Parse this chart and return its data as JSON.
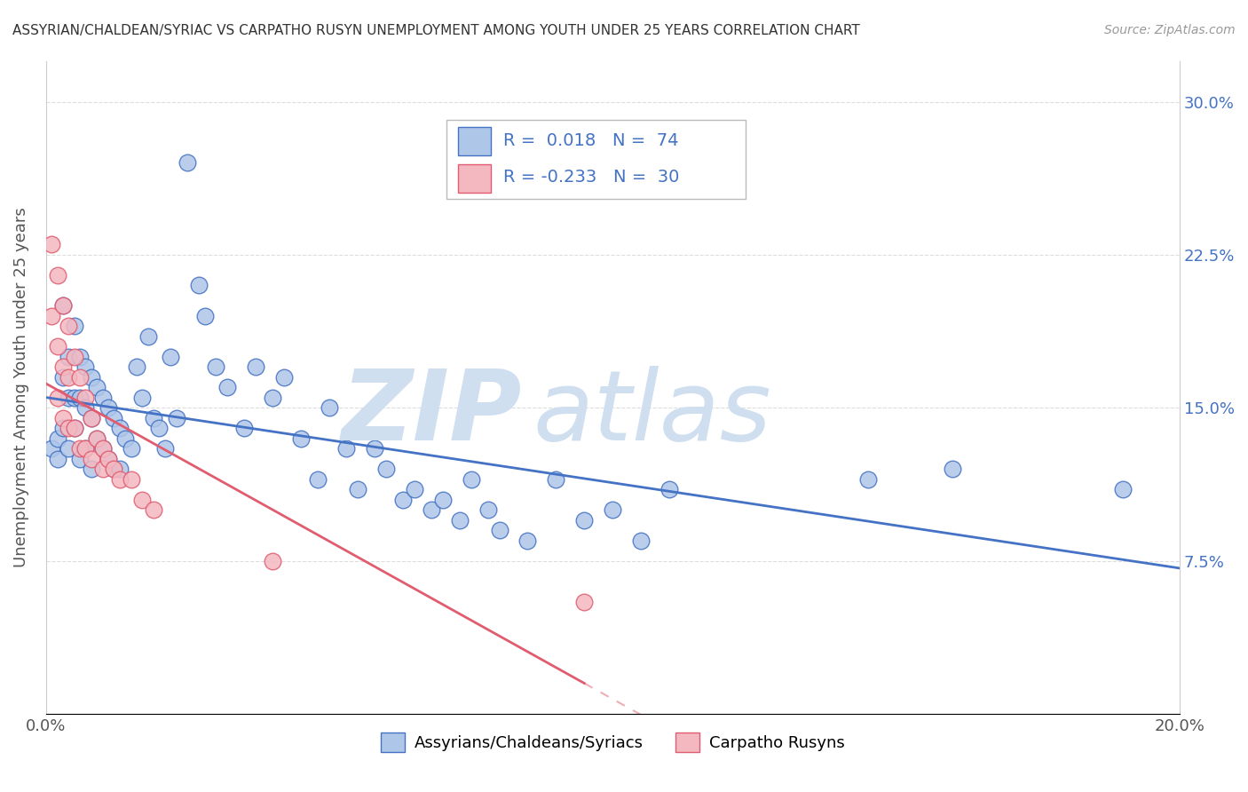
{
  "title": "ASSYRIAN/CHALDEAN/SYRIAC VS CARPATHO RUSYN UNEMPLOYMENT AMONG YOUTH UNDER 25 YEARS CORRELATION CHART",
  "source": "Source: ZipAtlas.com",
  "ylabel": "Unemployment Among Youth under 25 years",
  "xlim": [
    0.0,
    0.2
  ],
  "ylim": [
    0.0,
    0.32
  ],
  "legend_label1": "Assyrians/Chaldeans/Syriacs",
  "legend_label2": "Carpatho Rusyns",
  "R1": 0.018,
  "N1": 74,
  "R2": -0.233,
  "N2": 30,
  "color1": "#aec6e8",
  "color2": "#f4b8c1",
  "line_color1": "#4472c4",
  "line_color2": "#e05c6e",
  "blue_scatter_x": [
    0.001,
    0.002,
    0.002,
    0.003,
    0.003,
    0.003,
    0.004,
    0.004,
    0.004,
    0.005,
    0.005,
    0.005,
    0.006,
    0.006,
    0.006,
    0.007,
    0.007,
    0.007,
    0.008,
    0.008,
    0.008,
    0.009,
    0.009,
    0.01,
    0.01,
    0.011,
    0.011,
    0.012,
    0.012,
    0.013,
    0.013,
    0.014,
    0.015,
    0.016,
    0.017,
    0.018,
    0.019,
    0.02,
    0.021,
    0.022,
    0.023,
    0.025,
    0.027,
    0.028,
    0.03,
    0.032,
    0.035,
    0.037,
    0.04,
    0.042,
    0.045,
    0.048,
    0.05,
    0.053,
    0.055,
    0.058,
    0.06,
    0.063,
    0.065,
    0.068,
    0.07,
    0.073,
    0.075,
    0.078,
    0.08,
    0.085,
    0.09,
    0.095,
    0.1,
    0.105,
    0.11,
    0.145,
    0.16,
    0.19
  ],
  "blue_scatter_y": [
    0.13,
    0.135,
    0.125,
    0.2,
    0.165,
    0.14,
    0.175,
    0.155,
    0.13,
    0.19,
    0.155,
    0.14,
    0.175,
    0.155,
    0.125,
    0.17,
    0.15,
    0.13,
    0.165,
    0.145,
    0.12,
    0.16,
    0.135,
    0.155,
    0.13,
    0.15,
    0.125,
    0.145,
    0.12,
    0.14,
    0.12,
    0.135,
    0.13,
    0.17,
    0.155,
    0.185,
    0.145,
    0.14,
    0.13,
    0.175,
    0.145,
    0.27,
    0.21,
    0.195,
    0.17,
    0.16,
    0.14,
    0.17,
    0.155,
    0.165,
    0.135,
    0.115,
    0.15,
    0.13,
    0.11,
    0.13,
    0.12,
    0.105,
    0.11,
    0.1,
    0.105,
    0.095,
    0.115,
    0.1,
    0.09,
    0.085,
    0.115,
    0.095,
    0.1,
    0.085,
    0.11,
    0.115,
    0.12,
    0.11
  ],
  "pink_scatter_x": [
    0.001,
    0.001,
    0.002,
    0.002,
    0.002,
    0.003,
    0.003,
    0.003,
    0.004,
    0.004,
    0.004,
    0.005,
    0.005,
    0.006,
    0.006,
    0.007,
    0.007,
    0.008,
    0.008,
    0.009,
    0.01,
    0.01,
    0.011,
    0.012,
    0.013,
    0.015,
    0.017,
    0.019,
    0.04,
    0.095
  ],
  "pink_scatter_y": [
    0.23,
    0.195,
    0.215,
    0.18,
    0.155,
    0.2,
    0.17,
    0.145,
    0.19,
    0.165,
    0.14,
    0.175,
    0.14,
    0.165,
    0.13,
    0.155,
    0.13,
    0.145,
    0.125,
    0.135,
    0.13,
    0.12,
    0.125,
    0.12,
    0.115,
    0.115,
    0.105,
    0.1,
    0.075,
    0.055
  ],
  "background_color": "#ffffff",
  "grid_color": "#dddddd"
}
